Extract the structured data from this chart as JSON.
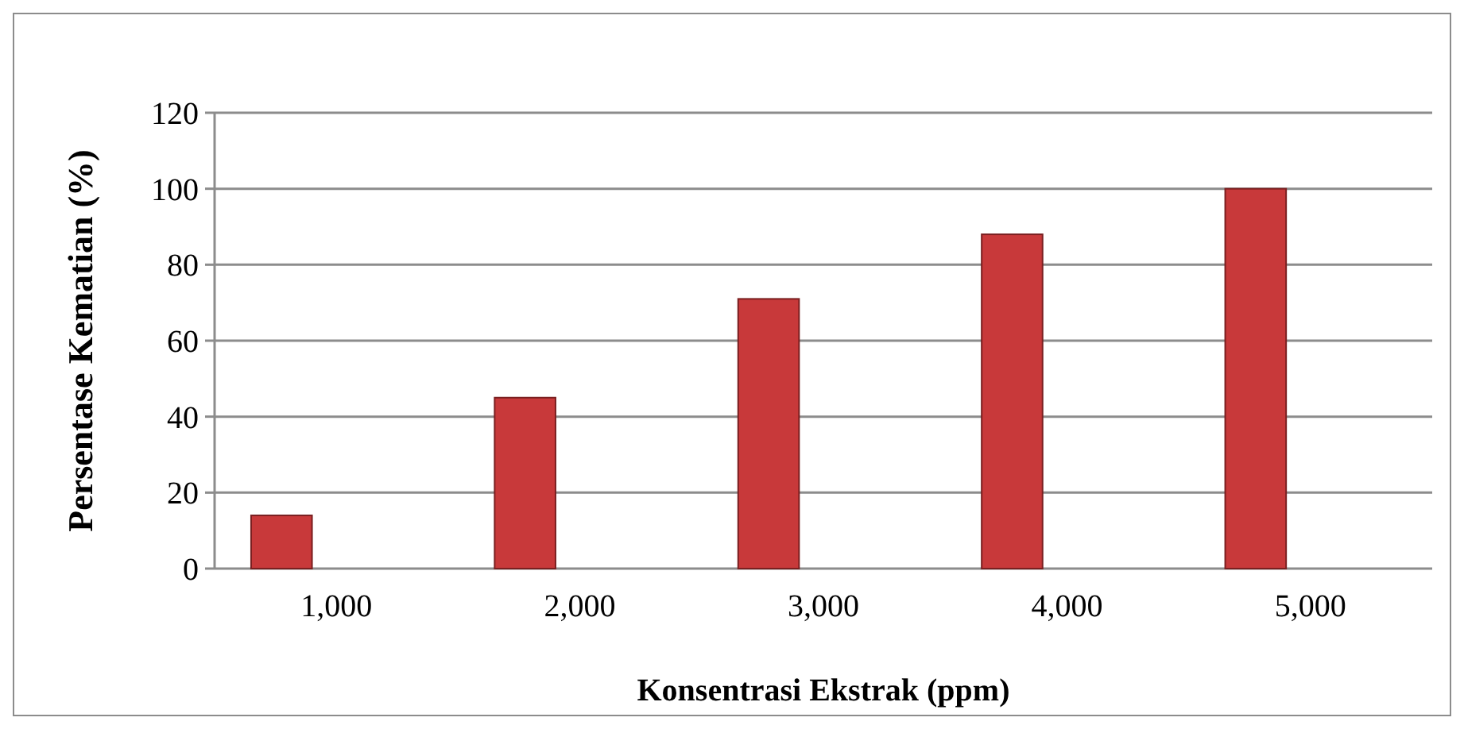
{
  "chart_data": {
    "type": "bar",
    "xlabel": "Konsentrasi Ekstrak (ppm)",
    "ylabel": "Persentase Kematian (%)",
    "categories": [
      "1,000",
      "2,000",
      "3,000",
      "4,000",
      "5,000"
    ],
    "values": [
      14,
      45,
      71,
      88,
      100
    ],
    "color": "#c8393a",
    "ylim": [
      0,
      120
    ],
    "yticks": [
      0,
      20,
      40,
      60,
      80,
      100,
      120
    ],
    "grid": "y"
  }
}
